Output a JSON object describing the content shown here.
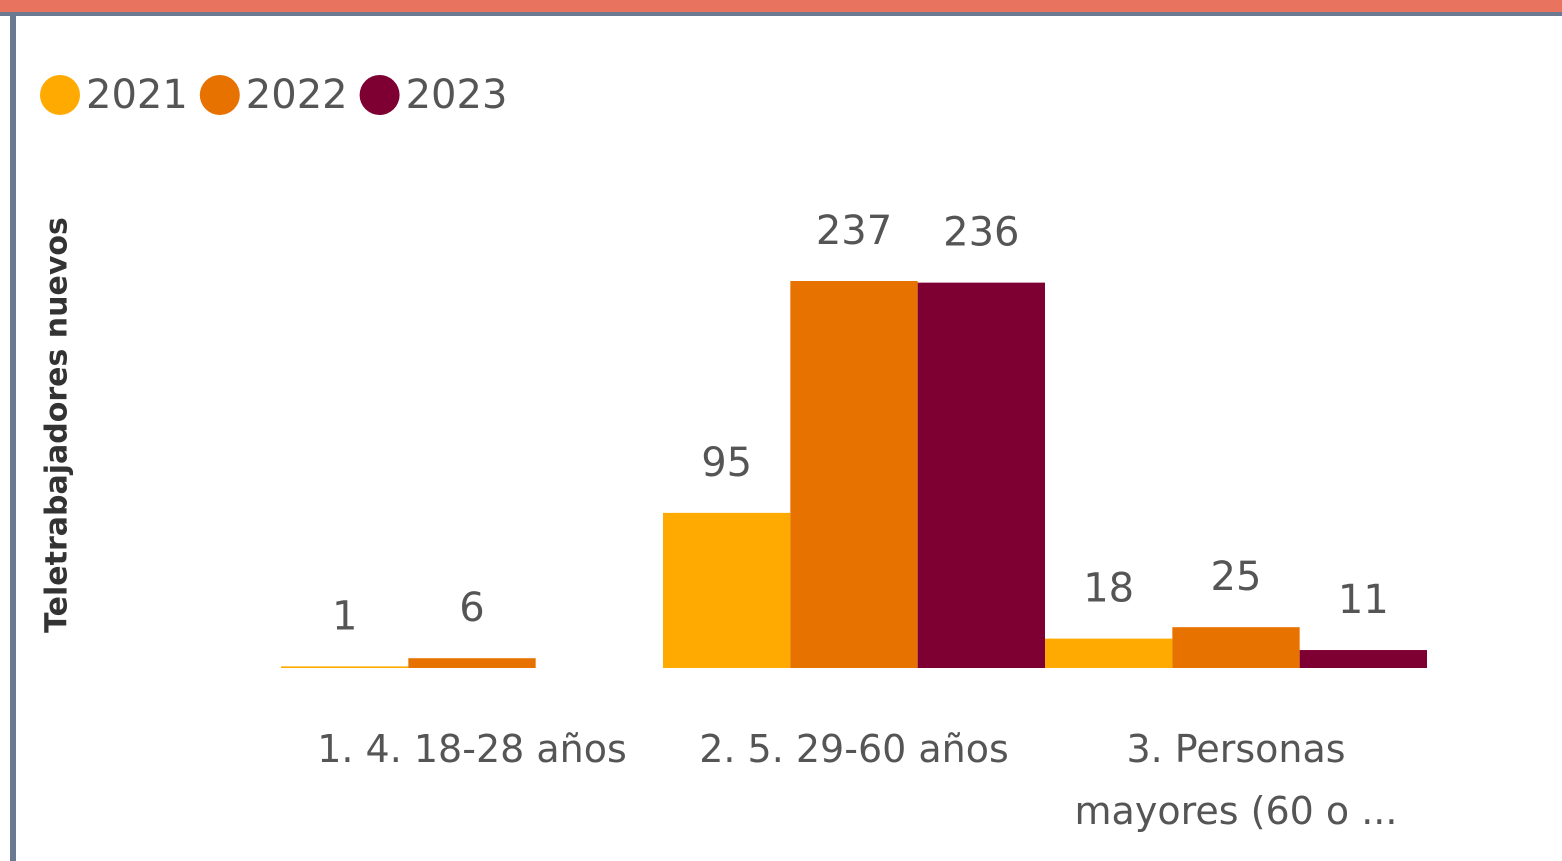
{
  "chart_data": {
    "type": "bar",
    "y_label": "Teletrabajadores nuevos",
    "categories": [
      "1. 4. 18-28 años",
      "2. 5. 29-60 años",
      "3. Personas mayores (60 o ..."
    ],
    "series": [
      {
        "name": "2021",
        "color": "#ffaa00",
        "values": [
          1,
          95,
          18
        ]
      },
      {
        "name": "2022",
        "color": "#e87200",
        "values": [
          6,
          237,
          25
        ]
      },
      {
        "name": "2023",
        "color": "#7e0033",
        "values": [
          null,
          236,
          11
        ]
      }
    ],
    "legend": "top-left",
    "grid": false
  }
}
